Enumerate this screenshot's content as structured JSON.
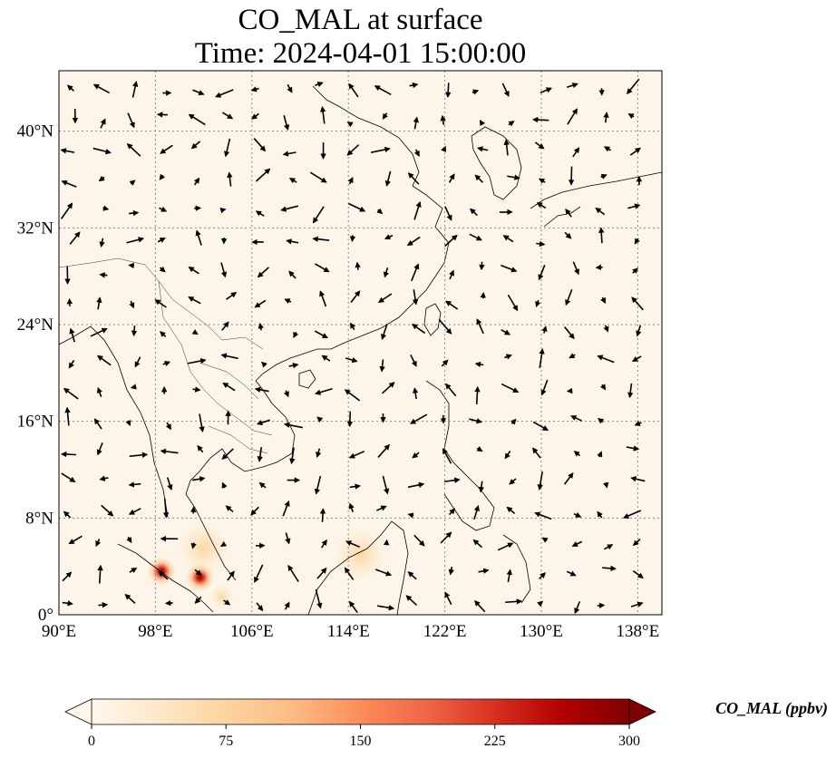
{
  "title": {
    "line1": "CO_MAL at surface",
    "line2": "Time: 2024-04-01 15:00:00"
  },
  "map": {
    "extent": {
      "lon": [
        90,
        140
      ],
      "lat": [
        0,
        45
      ]
    },
    "lon_ticks": [
      90,
      98,
      106,
      114,
      122,
      130,
      138
    ],
    "lat_ticks": [
      0,
      8,
      16,
      24,
      32,
      40
    ],
    "lon_tick_labels": [
      "90°E",
      "98°E",
      "106°E",
      "114°E",
      "122°E",
      "130°E",
      "138°E"
    ],
    "lat_tick_labels": [
      "0°",
      "8°N",
      "16°N",
      "24°N",
      "32°N",
      "40°N"
    ],
    "gridlines": true,
    "background_color": "#fdf5ea",
    "hotspots": [
      {
        "lon": 98.5,
        "lat": 3.6,
        "level": 1.0
      },
      {
        "lon": 101.7,
        "lat": 3.1,
        "level": 1.0
      },
      {
        "lon": 103.5,
        "lat": 1.5,
        "level": 0.45
      },
      {
        "lon": 102.0,
        "lat": 5.5,
        "level": 0.3
      },
      {
        "lon": 115.0,
        "lat": 5.0,
        "level": 0.2
      }
    ]
  },
  "colorbar": {
    "label": "CO_MAL (ppbv)",
    "min": 0,
    "max": 300,
    "ticks": [
      0,
      75,
      150,
      225,
      300
    ],
    "tick_labels": [
      "0",
      "75",
      "150",
      "225",
      "300"
    ],
    "extend": "both",
    "colormap": "OrRd",
    "colors": [
      "#fff7ec",
      "#fee8c8",
      "#fdd49e",
      "#fdbb84",
      "#fc8d59",
      "#ef6548",
      "#d7301f",
      "#b30000",
      "#7f0000"
    ]
  }
}
